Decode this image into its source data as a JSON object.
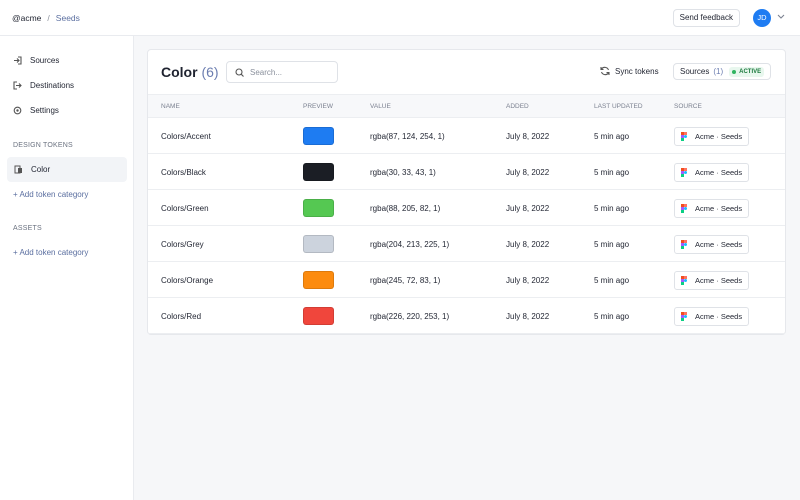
{
  "header": {
    "org": "@acme",
    "separator": "/",
    "project": "Seeds",
    "feedback": "Send feedback",
    "avatar": "JD"
  },
  "sidebar": {
    "nav": [
      "Sources",
      "Destinations",
      "Settings"
    ],
    "design_tokens": {
      "label": "DESIGN TOKENS",
      "items": [
        "Color"
      ],
      "add": "+ Add token category"
    },
    "assets": {
      "label": "ASSETS",
      "add": "+ Add token category"
    }
  },
  "card": {
    "title": "Color",
    "count": "(6)",
    "search": "Search...",
    "sync": "Sync tokens",
    "sources": "Sources",
    "sources_count": "(1)",
    "status": "ACTIVE"
  },
  "table": {
    "columns": [
      "NAME",
      "PREVIEW",
      "VALUE",
      "ADDED",
      "LAST UPDATED",
      "SOURCE"
    ],
    "rows": [
      {
        "name": "Colors/Accent",
        "preview": "#1e7cf2",
        "value": "rgba(87, 124, 254, 1)",
        "added": "July 8, 2022",
        "updated": "5 min ago",
        "source": "Acme · Seeds"
      },
      {
        "name": "Colors/Black",
        "preview": "#1b1e25",
        "value": "rgba(30, 33, 43, 1)",
        "added": "July 8, 2022",
        "updated": "5 min ago",
        "source": "Acme · Seeds"
      },
      {
        "name": "Colors/Green",
        "preview": "#55c852",
        "value": "rgba(88, 205, 82, 1)",
        "added": "July 8, 2022",
        "updated": "5 min ago",
        "source": "Acme · Seeds"
      },
      {
        "name": "Colors/Grey",
        "preview": "#ccd3dd",
        "value": "rgba(204, 213, 225, 1)",
        "added": "July 8, 2022",
        "updated": "5 min ago",
        "source": "Acme · Seeds"
      },
      {
        "name": "Colors/Orange",
        "preview": "#fc8b0e",
        "value": "rgba(245, 72, 83, 1)",
        "added": "July 8, 2022",
        "updated": "5 min ago",
        "source": "Acme · Seeds"
      },
      {
        "name": "Colors/Red",
        "preview": "#f0463c",
        "value": "rgba(226, 220, 253, 1)",
        "added": "July 8, 2022",
        "updated": "5 min ago",
        "source": "Acme · Seeds"
      }
    ]
  }
}
